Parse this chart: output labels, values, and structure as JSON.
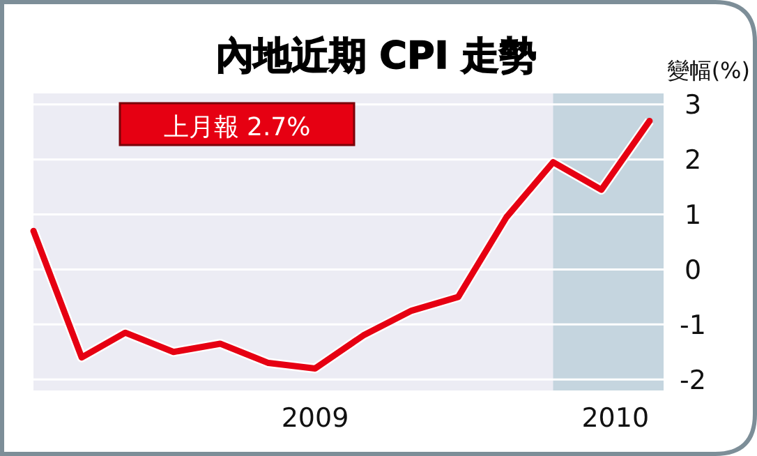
{
  "chart_data": {
    "type": "line",
    "title": "內地近期 CPI 走勢",
    "ylabel": "變幅(%)",
    "annotations": [
      "上月報 2.7%"
    ],
    "x": [
      "2009-01",
      "2009-02",
      "2009-03",
      "2009-04",
      "2009-05",
      "2009-06",
      "2009-07",
      "2009-08",
      "2009-09",
      "2009-10",
      "2009-11",
      "2009-12",
      "2010-01",
      "2010-02"
    ],
    "series": [
      {
        "color": "#e60012",
        "values": [
          0.7,
          -1.6,
          -1.15,
          -1.5,
          -1.35,
          -1.7,
          -1.8,
          -1.2,
          -0.75,
          -0.5,
          0.95,
          1.95,
          1.45,
          2.7
        ]
      }
    ],
    "xlim": [
      "2009-01-01",
      "2010-02-10"
    ],
    "xticks": [
      {
        "value": "2009-07-01",
        "label": "2009"
      },
      {
        "value": "2010-01-10",
        "label": "2010"
      }
    ],
    "ylim": [
      -2.2,
      3.2
    ],
    "yticks": [
      3,
      2,
      1,
      0,
      -1,
      -2
    ],
    "bands": [
      {
        "axis": "x",
        "from": "2009-12-01",
        "to": "2010-02-10",
        "color": "#c5d5df"
      }
    ],
    "grid": "y",
    "marker": "none",
    "line_style": "solid"
  }
}
